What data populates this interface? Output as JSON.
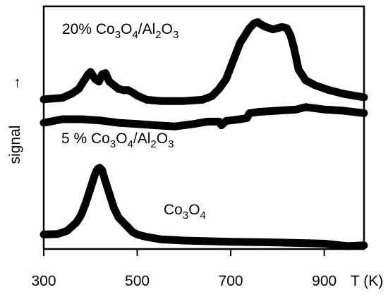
{
  "chart_data": {
    "type": "line",
    "title": "",
    "xlabel": "T (K)",
    "ylabel": "signal →",
    "ylabel_text": "signal",
    "ylabel_arrow": "→",
    "xlim": [
      300,
      985
    ],
    "ylim": [
      0,
      1
    ],
    "xticks": [
      300,
      500,
      700,
      900
    ],
    "yticks": [],
    "grid": false,
    "legend": "none",
    "line_color": "#000000",
    "series": [
      {
        "name": "20% Co3O4/Al2O3",
        "label": {
          "main": "20% Co",
          "s1": "3",
          "m1": "O",
          "s2": "4",
          "m2": "/Al",
          "s3": "2",
          "m3": "O",
          "s4": "3"
        },
        "x": [
          300,
          340,
          360,
          375,
          385,
          395,
          400,
          410,
          418,
          425,
          432,
          440,
          450,
          460,
          470,
          480,
          490,
          500,
          520,
          550,
          600,
          640,
          660,
          675,
          690,
          700,
          710,
          720,
          730,
          740,
          750,
          758,
          765,
          775,
          790,
          810,
          820,
          828,
          835,
          845,
          860,
          880,
          910,
          940,
          985
        ],
        "y": [
          0.617,
          0.623,
          0.64,
          0.66,
          0.69,
          0.72,
          0.73,
          0.7,
          0.69,
          0.72,
          0.725,
          0.69,
          0.675,
          0.66,
          0.655,
          0.655,
          0.645,
          0.632,
          0.615,
          0.61,
          0.61,
          0.615,
          0.63,
          0.66,
          0.7,
          0.75,
          0.8,
          0.85,
          0.88,
          0.91,
          0.93,
          0.935,
          0.925,
          0.915,
          0.905,
          0.915,
          0.91,
          0.88,
          0.83,
          0.74,
          0.695,
          0.675,
          0.655,
          0.64,
          0.625
        ]
      },
      {
        "name": "5 % Co3O4/Al2O3",
        "label": {
          "main": "5 % Co",
          "s1": "3",
          "m1": "O",
          "s2": "4",
          "m2": "/Al",
          "s3": "2",
          "m3": "O",
          "s4": "3"
        },
        "x": [
          300,
          340,
          380,
          420,
          460,
          500,
          540,
          580,
          620,
          650,
          675,
          680,
          690,
          700,
          720,
          735,
          740,
          760,
          800,
          840,
          860,
          900,
          940,
          985
        ],
        "y": [
          0.52,
          0.535,
          0.535,
          0.53,
          0.52,
          0.515,
          0.51,
          0.505,
          0.515,
          0.525,
          0.525,
          0.51,
          0.528,
          0.53,
          0.535,
          0.54,
          0.56,
          0.565,
          0.57,
          0.575,
          0.585,
          0.575,
          0.57,
          0.56
        ]
      },
      {
        "name": "Co3O4",
        "label": {
          "main": "Co",
          "s1": "3",
          "m1": "O",
          "s2": "4"
        },
        "x": [
          300,
          330,
          350,
          370,
          380,
          390,
          400,
          410,
          415,
          420,
          425,
          430,
          440,
          450,
          460,
          470,
          480,
          490,
          500,
          520,
          550,
          600,
          700,
          800,
          900,
          950,
          985
        ],
        "y": [
          0.06,
          0.062,
          0.075,
          0.11,
          0.14,
          0.19,
          0.25,
          0.31,
          0.33,
          0.335,
          0.325,
          0.29,
          0.23,
          0.17,
          0.13,
          0.11,
          0.09,
          0.07,
          0.06,
          0.05,
          0.04,
          0.035,
          0.03,
          0.027,
          0.022,
          0.012,
          0.015
        ]
      }
    ]
  }
}
